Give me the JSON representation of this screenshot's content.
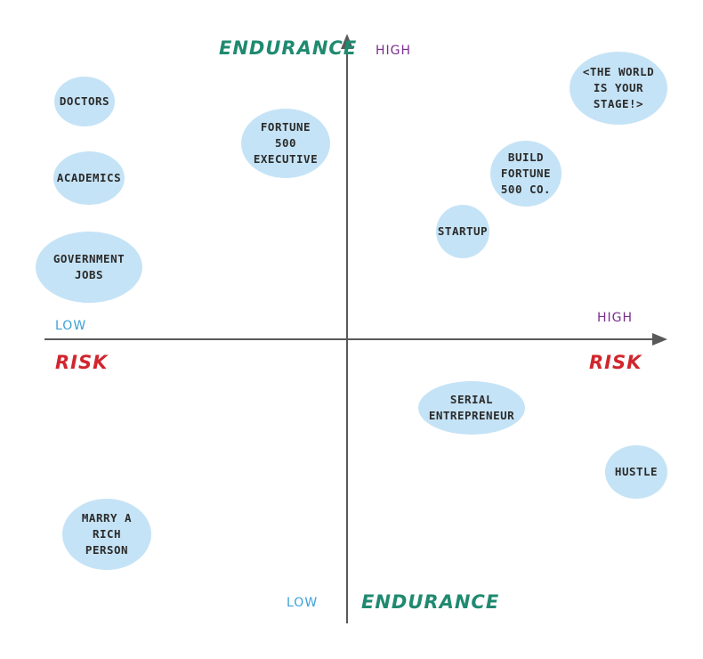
{
  "colors": {
    "axis": "#595959",
    "endurance": "#1f8a70",
    "risk": "#d0262d",
    "high": "#7b2d8e",
    "low": "#3ea0d8",
    "bubble": "#c5e3f6",
    "text": "#2b2b2b"
  },
  "axes": {
    "top_title": "ENDURANCE",
    "top_high": "HIGH",
    "bottom_low": "LOW",
    "bottom_title": "ENDURANCE",
    "left_low": "LOW",
    "left_title": "RISK",
    "right_high": "HIGH",
    "right_title": "RISK"
  },
  "bubbles": [
    {
      "id": "doctors",
      "text": "DOCTORS"
    },
    {
      "id": "academics",
      "text": "ACADEMICS"
    },
    {
      "id": "government-jobs",
      "text": "GOVERNMENT\nJOBS"
    },
    {
      "id": "fortune-500-executive",
      "text": "FORTUNE\n500\nEXECUTIVE"
    },
    {
      "id": "the-world-is-your-stage",
      "text": "<THE WORLD\nIS YOUR\nSTAGE!>"
    },
    {
      "id": "build-fortune-500-co",
      "text": "BUILD\nFORTUNE\n500 CO."
    },
    {
      "id": "startup",
      "text": "STARTUP"
    },
    {
      "id": "serial-entrepreneur",
      "text": "SERIAL\nENTREPRENEUR"
    },
    {
      "id": "hustle",
      "text": "HUSTLE"
    },
    {
      "id": "marry-a-rich-person",
      "text": "MARRY A\nRICH\nPERSON"
    }
  ]
}
